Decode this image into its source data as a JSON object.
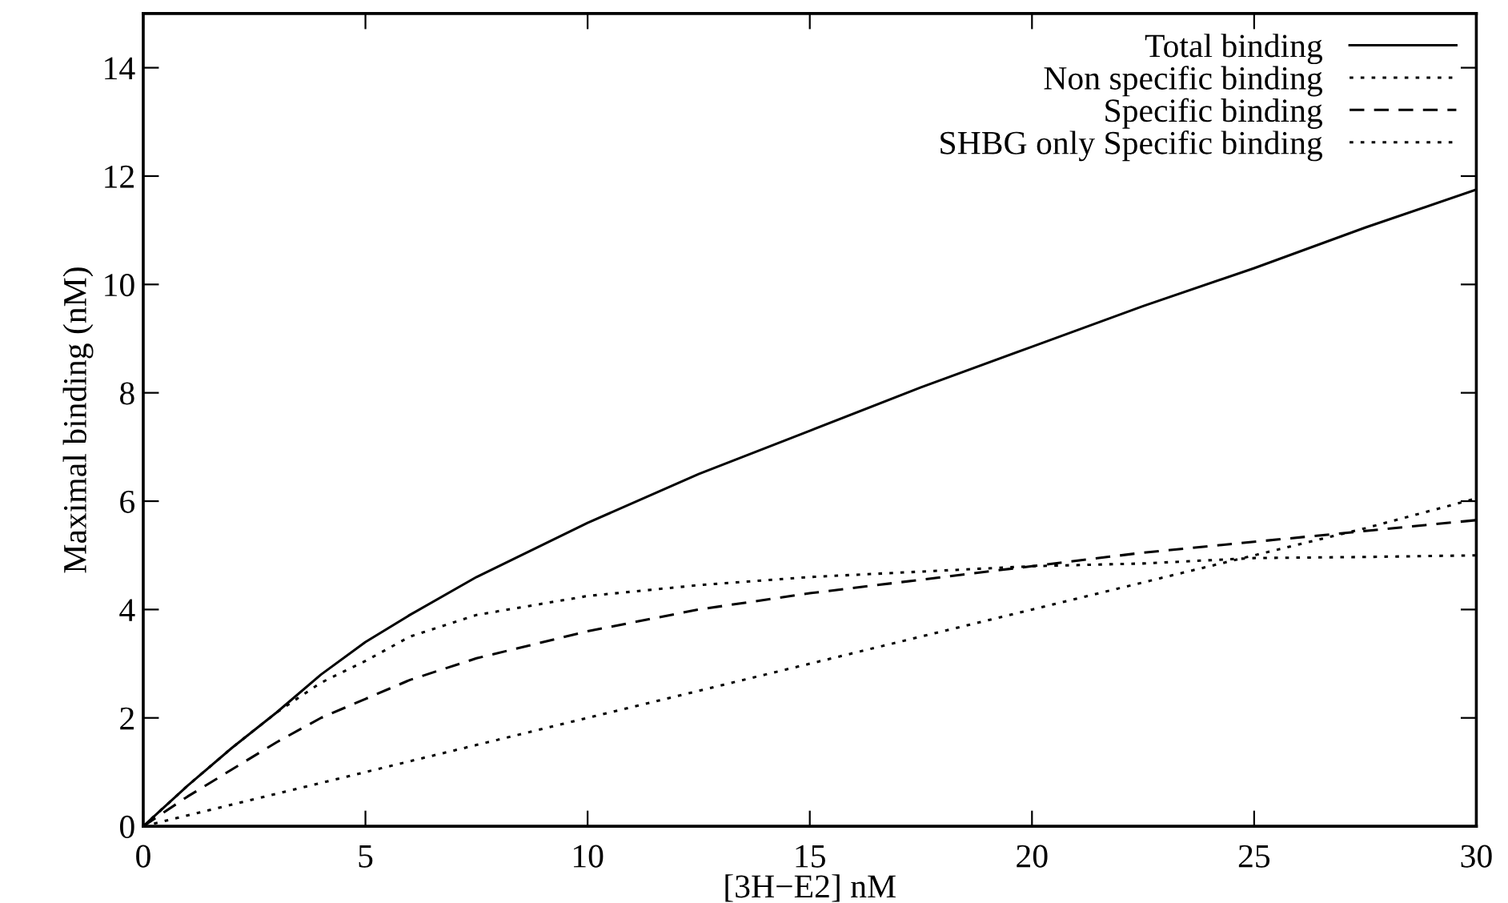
{
  "chart_data": {
    "type": "line",
    "xlabel": "[3H−E2] nM",
    "ylabel": "Maximal binding (nM)",
    "xlim": [
      0,
      30
    ],
    "xticks": [
      0,
      5,
      10,
      15,
      20,
      25,
      30
    ],
    "ylim": [
      0,
      15
    ],
    "yticks": [
      0,
      2,
      4,
      6,
      8,
      10,
      12,
      14
    ],
    "grid": false,
    "legend": "top right",
    "marker": "none",
    "x": [
      0,
      1,
      2,
      3,
      4,
      5,
      6,
      7.5,
      10,
      12.5,
      15,
      17.5,
      20,
      22.5,
      25,
      27.5,
      30
    ],
    "series": [
      {
        "name": "Total binding",
        "color": "#000000",
        "line_style": "solid",
        "values": [
          0,
          0.75,
          1.45,
          2.1,
          2.8,
          3.4,
          3.9,
          4.6,
          5.6,
          6.5,
          7.3,
          8.1,
          8.85,
          9.6,
          10.3,
          11.05,
          11.75
        ]
      },
      {
        "name": "Non specific binding",
        "color": "#000000",
        "line_style": "dotted",
        "values": [
          0,
          0.2,
          0.4,
          0.6,
          0.8,
          1.0,
          1.2,
          1.5,
          2.0,
          2.5,
          3.0,
          3.5,
          4.0,
          4.5,
          5.0,
          5.5,
          6.05
        ]
      },
      {
        "name": "Specific binding",
        "color": "#000000",
        "line_style": "dashed",
        "values": [
          0,
          0.55,
          1.05,
          1.55,
          2.0,
          2.35,
          2.7,
          3.1,
          3.6,
          4.0,
          4.3,
          4.55,
          4.8,
          5.05,
          5.25,
          5.45,
          5.65
        ]
      },
      {
        "name": "SHBG only Specific binding",
        "color": "#000000",
        "line_style": "dotted",
        "values": [
          0,
          0.75,
          1.45,
          2.1,
          2.65,
          3.05,
          3.5,
          3.9,
          4.25,
          4.45,
          4.6,
          4.7,
          4.8,
          4.85,
          4.95,
          4.97,
          5.0
        ]
      }
    ]
  }
}
